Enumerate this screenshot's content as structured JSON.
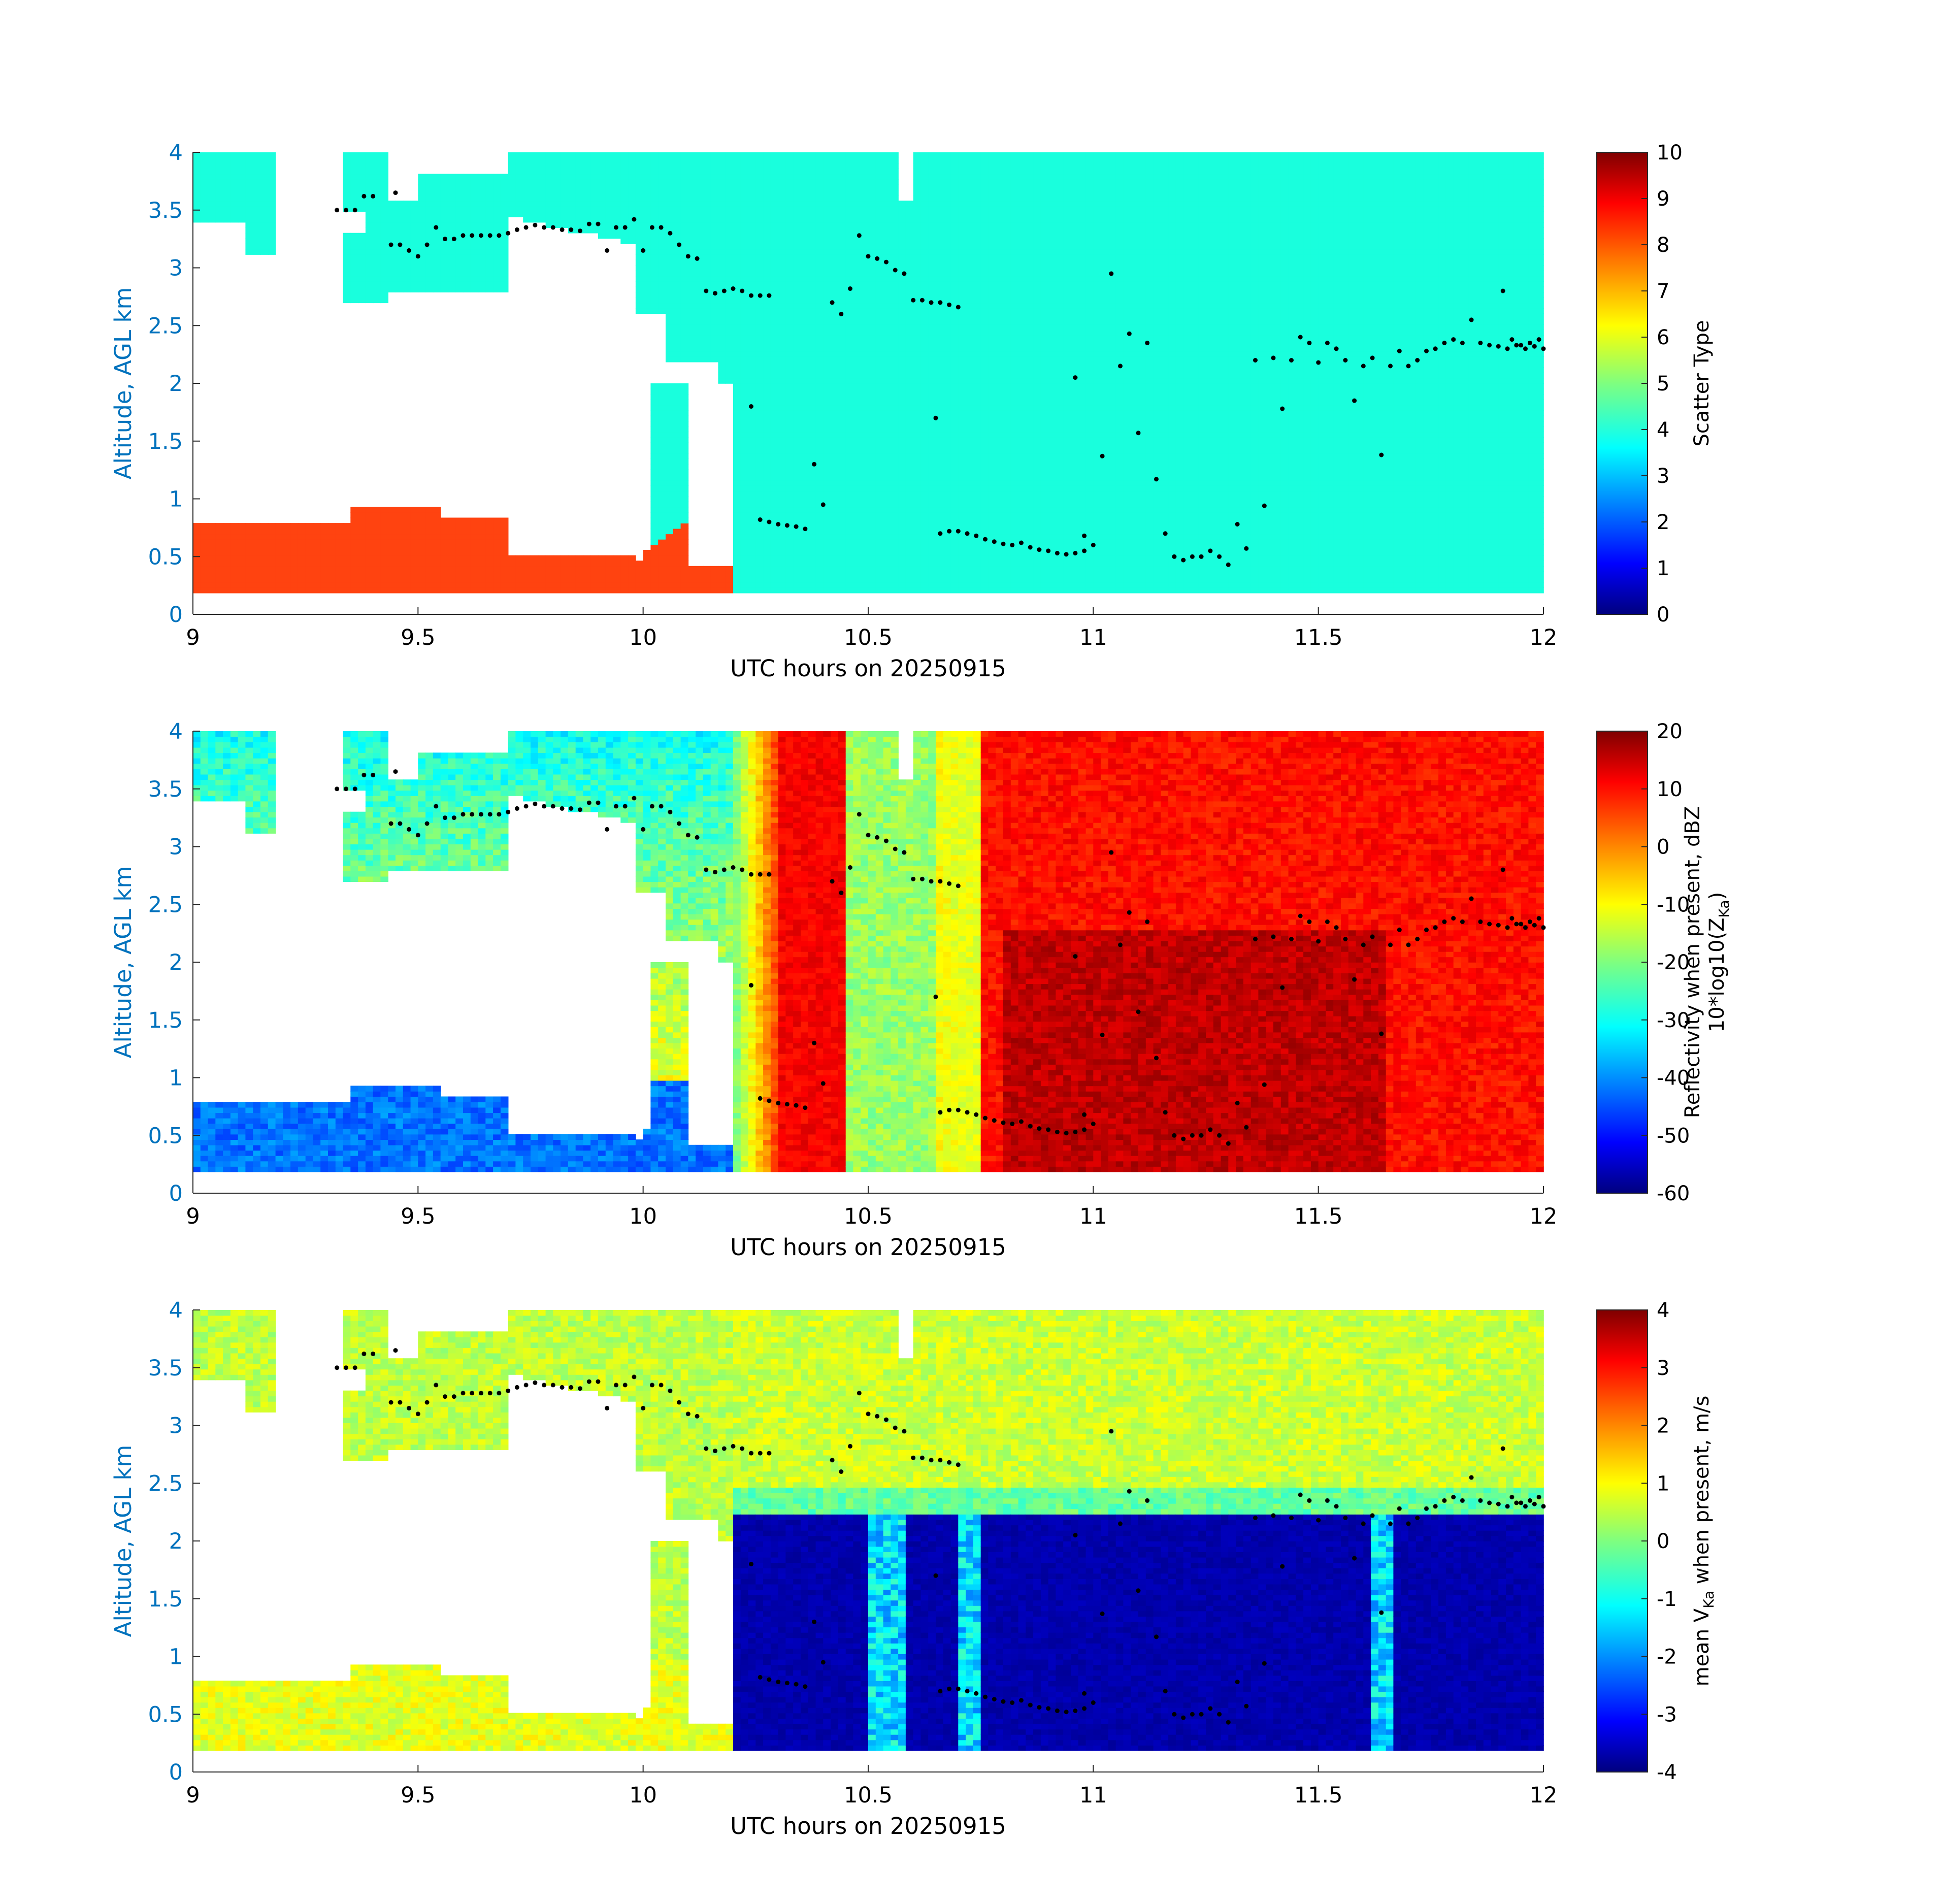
{
  "colors": {
    "axis": "#262626",
    "ylabel_color": "#0072BD",
    "scatter_cloud": "#19FFDD",
    "scatter_drizzle": "#FF4310",
    "points": "#000000"
  },
  "chart_data": [
    {
      "type": "heatmap",
      "xlabel": "UTC hours on 20250915",
      "ylabel": "Altitude, AGL km",
      "xlim": [
        9,
        12
      ],
      "ylim": [
        0,
        4
      ],
      "xticks": [
        "9",
        "9.5",
        "10",
        "10.5",
        "11",
        "11.5",
        "12"
      ],
      "yticks": [
        "0",
        "0.5",
        "1",
        "1.5",
        "2",
        "2.5",
        "3",
        "3.5",
        "4"
      ],
      "colorbar": {
        "label": "Scatter Type",
        "label_line2": "",
        "range": [
          0,
          10
        ],
        "ticks": [
          "0",
          "1",
          "2",
          "3",
          "4",
          "5",
          "6",
          "7",
          "8",
          "9",
          "10"
        ]
      }
    },
    {
      "type": "heatmap",
      "xlabel": "UTC hours on 20250915",
      "ylabel": "Altitude, AGL km",
      "xlim": [
        9,
        12
      ],
      "ylim": [
        0,
        4
      ],
      "xticks": [
        "9",
        "9.5",
        "10",
        "10.5",
        "11",
        "11.5",
        "12"
      ],
      "yticks": [
        "0",
        "0.5",
        "1",
        "1.5",
        "2",
        "2.5",
        "3",
        "3.5",
        "4"
      ],
      "colorbar": {
        "label": "Reflectivity when present, dBZ",
        "label_line2": "10*log10(Z",
        "label_sub": "Ka",
        "label_end": ")",
        "range": [
          -60,
          20
        ],
        "ticks": [
          "-60",
          "-50",
          "-40",
          "-30",
          "-20",
          "-10",
          "0",
          "10",
          "20"
        ]
      }
    },
    {
      "type": "heatmap",
      "xlabel": "UTC hours on 20250915",
      "ylabel": "Altitude, AGL km",
      "xlim": [
        9,
        12
      ],
      "ylim": [
        0,
        4
      ],
      "xticks": [
        "9",
        "9.5",
        "10",
        "10.5",
        "11",
        "11.5",
        "12"
      ],
      "yticks": [
        "0",
        "0.5",
        "1",
        "1.5",
        "2",
        "2.5",
        "3",
        "3.5",
        "4"
      ],
      "colorbar": {
        "label": "mean V",
        "label_sub": "Ka",
        "label_end": " when present, m/s",
        "range": [
          -4,
          4
        ],
        "ticks": [
          "-4",
          "-3",
          "-2",
          "-1",
          "0",
          "1",
          "2",
          "3",
          "4"
        ]
      }
    }
  ],
  "cloud_base_points": [
    [
      9.32,
      3.5
    ],
    [
      9.34,
      3.5
    ],
    [
      9.36,
      3.5
    ],
    [
      9.38,
      3.62
    ],
    [
      9.4,
      3.62
    ],
    [
      9.45,
      3.65
    ],
    [
      9.44,
      3.2
    ],
    [
      9.46,
      3.2
    ],
    [
      9.48,
      3.15
    ],
    [
      9.5,
      3.1
    ],
    [
      9.52,
      3.2
    ],
    [
      9.54,
      3.35
    ],
    [
      9.56,
      3.25
    ],
    [
      9.58,
      3.25
    ],
    [
      9.6,
      3.28
    ],
    [
      9.62,
      3.28
    ],
    [
      9.64,
      3.28
    ],
    [
      9.66,
      3.28
    ],
    [
      9.68,
      3.28
    ],
    [
      9.7,
      3.3
    ],
    [
      9.72,
      3.33
    ],
    [
      9.74,
      3.35
    ],
    [
      9.76,
      3.37
    ],
    [
      9.78,
      3.35
    ],
    [
      9.8,
      3.35
    ],
    [
      9.82,
      3.33
    ],
    [
      9.84,
      3.33
    ],
    [
      9.86,
      3.32
    ],
    [
      9.88,
      3.38
    ],
    [
      9.9,
      3.38
    ],
    [
      9.92,
      3.15
    ],
    [
      9.94,
      3.35
    ],
    [
      9.96,
      3.35
    ],
    [
      9.98,
      3.42
    ],
    [
      10.0,
      3.15
    ],
    [
      10.02,
      3.35
    ],
    [
      10.04,
      3.35
    ],
    [
      10.06,
      3.3
    ],
    [
      10.08,
      3.2
    ],
    [
      10.1,
      3.1
    ],
    [
      10.12,
      3.08
    ],
    [
      10.14,
      2.8
    ],
    [
      10.16,
      2.78
    ],
    [
      10.18,
      2.8
    ],
    [
      10.2,
      2.82
    ],
    [
      10.22,
      2.8
    ],
    [
      10.24,
      2.76
    ],
    [
      10.26,
      2.76
    ],
    [
      10.28,
      2.76
    ],
    [
      10.24,
      1.8
    ],
    [
      10.26,
      0.82
    ],
    [
      10.28,
      0.8
    ],
    [
      10.3,
      0.78
    ],
    [
      10.32,
      0.77
    ],
    [
      10.34,
      0.76
    ],
    [
      10.36,
      0.74
    ],
    [
      10.38,
      1.3
    ],
    [
      10.4,
      0.95
    ],
    [
      10.42,
      2.7
    ],
    [
      10.44,
      2.6
    ],
    [
      10.46,
      2.82
    ],
    [
      10.48,
      3.28
    ],
    [
      10.5,
      3.1
    ],
    [
      10.52,
      3.08
    ],
    [
      10.54,
      3.05
    ],
    [
      10.56,
      2.98
    ],
    [
      10.58,
      2.95
    ],
    [
      10.6,
      2.72
    ],
    [
      10.62,
      2.72
    ],
    [
      10.64,
      2.7
    ],
    [
      10.66,
      2.7
    ],
    [
      10.68,
      2.68
    ],
    [
      10.7,
      2.66
    ],
    [
      10.65,
      1.7
    ],
    [
      10.66,
      0.7
    ],
    [
      10.68,
      0.72
    ],
    [
      10.7,
      0.72
    ],
    [
      10.72,
      0.7
    ],
    [
      10.74,
      0.68
    ],
    [
      10.76,
      0.65
    ],
    [
      10.78,
      0.63
    ],
    [
      10.8,
      0.61
    ],
    [
      10.82,
      0.6
    ],
    [
      10.84,
      0.62
    ],
    [
      10.86,
      0.58
    ],
    [
      10.88,
      0.56
    ],
    [
      10.9,
      0.55
    ],
    [
      10.92,
      0.53
    ],
    [
      10.94,
      0.52
    ],
    [
      10.96,
      0.53
    ],
    [
      10.98,
      0.55
    ],
    [
      10.96,
      2.05
    ],
    [
      10.98,
      0.68
    ],
    [
      11.0,
      0.6
    ],
    [
      11.02,
      1.37
    ],
    [
      11.04,
      2.95
    ],
    [
      11.06,
      2.15
    ],
    [
      11.08,
      2.43
    ],
    [
      11.1,
      1.57
    ],
    [
      11.12,
      2.35
    ],
    [
      11.14,
      1.17
    ],
    [
      11.16,
      0.7
    ],
    [
      11.18,
      0.5
    ],
    [
      11.2,
      0.47
    ],
    [
      11.22,
      0.5
    ],
    [
      11.24,
      0.5
    ],
    [
      11.26,
      0.55
    ],
    [
      11.28,
      0.5
    ],
    [
      11.3,
      0.43
    ],
    [
      11.32,
      0.78
    ],
    [
      11.34,
      0.57
    ],
    [
      11.36,
      2.2
    ],
    [
      11.38,
      0.94
    ],
    [
      11.4,
      2.22
    ],
    [
      11.42,
      1.78
    ],
    [
      11.44,
      2.2
    ],
    [
      11.46,
      2.4
    ],
    [
      11.48,
      2.35
    ],
    [
      11.5,
      2.18
    ],
    [
      11.52,
      2.35
    ],
    [
      11.54,
      2.3
    ],
    [
      11.56,
      2.2
    ],
    [
      11.58,
      1.85
    ],
    [
      11.6,
      2.15
    ],
    [
      11.62,
      2.22
    ],
    [
      11.64,
      1.38
    ],
    [
      11.66,
      2.15
    ],
    [
      11.68,
      2.28
    ],
    [
      11.7,
      2.15
    ],
    [
      11.72,
      2.2
    ],
    [
      11.74,
      2.28
    ],
    [
      11.76,
      2.3
    ],
    [
      11.78,
      2.35
    ],
    [
      11.8,
      2.38
    ],
    [
      11.82,
      2.35
    ],
    [
      11.84,
      2.55
    ],
    [
      11.86,
      2.35
    ],
    [
      11.88,
      2.33
    ],
    [
      11.9,
      2.32
    ],
    [
      11.92,
      2.3
    ],
    [
      11.94,
      2.33
    ],
    [
      11.96,
      2.3
    ],
    [
      11.98,
      2.32
    ],
    [
      12.0,
      2.3
    ],
    [
      11.91,
      2.8
    ],
    [
      11.93,
      2.38
    ],
    [
      11.95,
      2.33
    ],
    [
      11.97,
      2.35
    ],
    [
      11.99,
      2.38
    ]
  ]
}
